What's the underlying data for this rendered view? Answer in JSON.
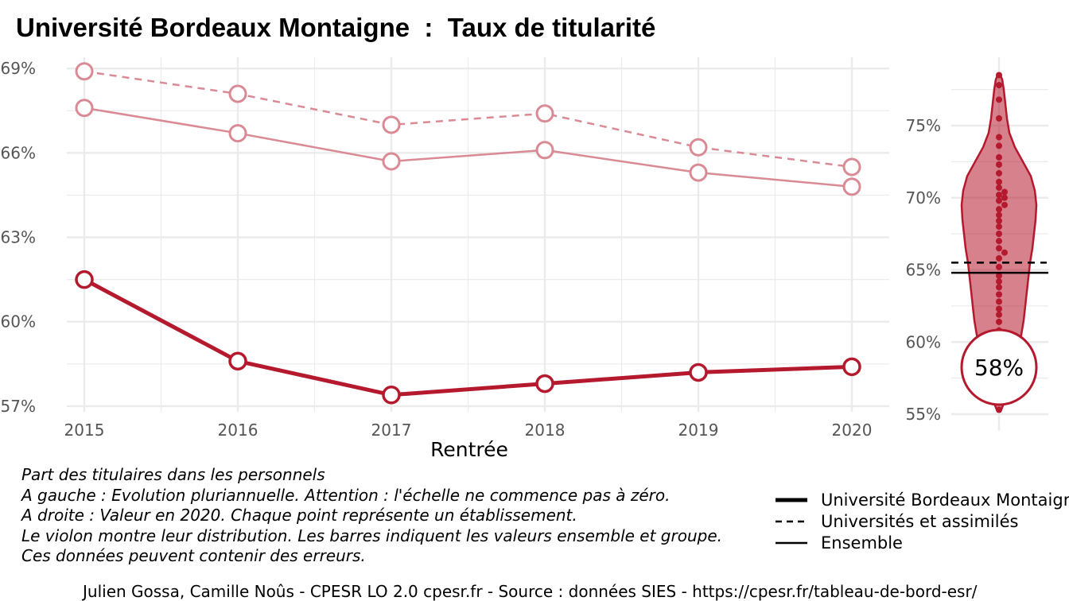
{
  "title": "Université Bordeaux Montaigne  :  Taux de titularité",
  "colors": {
    "main": "#b5192d",
    "light": "#d98a94",
    "grid": "#ebebeb"
  },
  "chart_data": [
    {
      "type": "line",
      "xlabel": "Rentrée",
      "x": [
        2015,
        2016,
        2017,
        2018,
        2019,
        2020
      ],
      "ylim": [
        56.8,
        69.4
      ],
      "y_ticks": [
        "57%",
        "60%",
        "63%",
        "66%",
        "69%"
      ],
      "y_tick_values": [
        57,
        60,
        63,
        66,
        69
      ],
      "series": [
        {
          "name": "Université Bordeaux Montaigne",
          "style": "thick-solid",
          "values": [
            61.5,
            58.6,
            57.4,
            57.8,
            58.2,
            58.4
          ]
        },
        {
          "name": "Universités et assimilés",
          "style": "dashed",
          "values": [
            68.9,
            68.1,
            67.0,
            67.4,
            66.2,
            65.5
          ]
        },
        {
          "name": "Ensemble",
          "style": "solid",
          "values": [
            67.6,
            66.7,
            65.7,
            66.1,
            65.3,
            64.8
          ]
        }
      ]
    },
    {
      "type": "violin",
      "ylim": [
        54.8,
        79.2
      ],
      "y_ticks": [
        "55%",
        "60%",
        "65%",
        "70%",
        "75%"
      ],
      "y_tick_values": [
        55,
        60,
        65,
        70,
        75
      ],
      "highlight_label": "58%",
      "highlight_value": 58.4,
      "reference_lines": {
        "Universités et assimilés": 65.5,
        "Ensemble": 64.8
      },
      "points": [
        78.5,
        77.8,
        76.8,
        75.5,
        74.2,
        73.6,
        72.8,
        72.3,
        71.7,
        71.1,
        70.7,
        70.4,
        70.2,
        70.0,
        69.8,
        69.5,
        69.2,
        68.8,
        68.4,
        68.0,
        67.5,
        67.0,
        66.5,
        66.2,
        65.8,
        65.2,
        64.6,
        64.2,
        63.8,
        63.3,
        62.8,
        62.3,
        61.9,
        61.4,
        60.8,
        60.2,
        59.4,
        58.7,
        57.9,
        57.2,
        55.3
      ]
    }
  ],
  "caption": [
    "Part des titulaires dans les personnels",
    "A gauche : Evolution pluriannuelle. Attention : l'échelle ne commence pas à zéro.",
    "A droite : Valeur en 2020. Chaque point représente un établissement.",
    "Le violon montre leur distribution. Les barres indiquent les valeurs ensemble et groupe.",
    "Ces données peuvent contenir des erreurs."
  ],
  "legend": [
    {
      "label": "Université Bordeaux Montaigne",
      "style": "thick-solid"
    },
    {
      "label": "Universités et assimilés",
      "style": "dashed"
    },
    {
      "label": "Ensemble",
      "style": "solid"
    }
  ],
  "footer": "Julien Gossa, Camille Noûs - CPESR LO 2.0 cpesr.fr - Source : données SIES - https://cpesr.fr/tableau-de-bord-esr/"
}
